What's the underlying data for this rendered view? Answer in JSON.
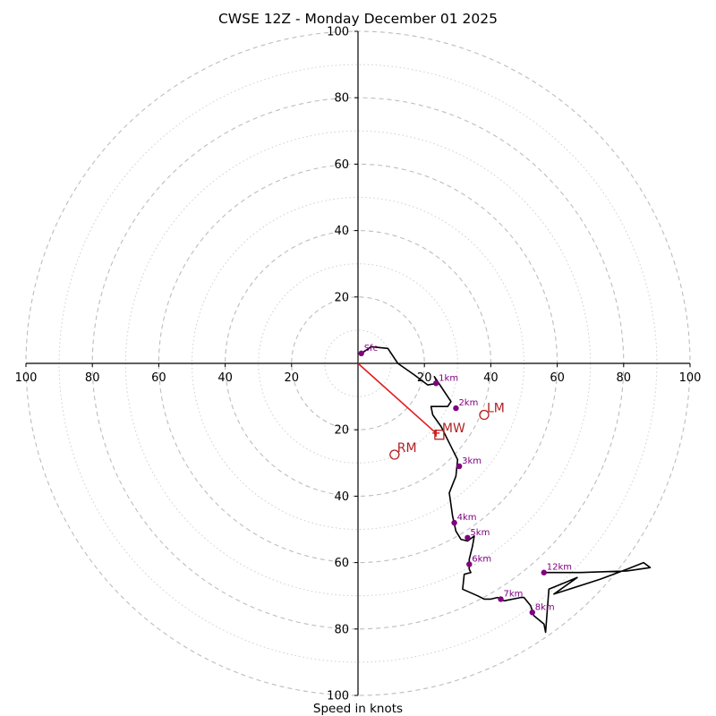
{
  "chart_data": {
    "type": "hodograph",
    "title": "CWSE 12Z - Monday December 01 2025",
    "xlabel": "Speed in knots",
    "axis_range": [
      -100,
      100
    ],
    "major_rings": [
      20,
      40,
      60,
      80,
      100
    ],
    "minor_rings": [
      10,
      30,
      50,
      70,
      90
    ],
    "x_tick_labels": [
      {
        "value": -100,
        "label": "100"
      },
      {
        "value": -80,
        "label": "80"
      },
      {
        "value": -60,
        "label": "60"
      },
      {
        "value": -40,
        "label": "40"
      },
      {
        "value": -20,
        "label": "20"
      },
      {
        "value": 20,
        "label": "20"
      },
      {
        "value": 40,
        "label": "40"
      },
      {
        "value": 60,
        "label": "60"
      },
      {
        "value": 80,
        "label": "80"
      },
      {
        "value": 100,
        "label": "100"
      }
    ],
    "y_tick_labels": [
      {
        "value": 100,
        "label": "100"
      },
      {
        "value": 80,
        "label": "80"
      },
      {
        "value": 60,
        "label": "60"
      },
      {
        "value": 40,
        "label": "40"
      },
      {
        "value": 20,
        "label": "20"
      },
      {
        "value": -20,
        "label": "20"
      },
      {
        "value": -40,
        "label": "40"
      },
      {
        "value": -60,
        "label": "60"
      },
      {
        "value": -80,
        "label": "80"
      },
      {
        "value": -100,
        "label": "100"
      }
    ],
    "hodograph_path": [
      [
        1,
        3
      ],
      [
        4,
        5
      ],
      [
        9,
        4.5
      ],
      [
        12,
        0
      ],
      [
        17,
        -3.5
      ],
      [
        21,
        -6.5
      ],
      [
        24,
        -6
      ],
      [
        23,
        -4
      ],
      [
        25,
        -7
      ],
      [
        28,
        -11.5
      ],
      [
        27,
        -13
      ],
      [
        22,
        -13
      ],
      [
        22.5,
        -15.5
      ],
      [
        25,
        -19
      ],
      [
        28,
        -25
      ],
      [
        30,
        -29
      ],
      [
        29.5,
        -34
      ],
      [
        27.5,
        -39
      ],
      [
        28.5,
        -46
      ],
      [
        29.5,
        -50.5
      ],
      [
        31,
        -53
      ],
      [
        33,
        -53.5
      ],
      [
        35,
        -52
      ],
      [
        34.5,
        -55
      ],
      [
        33.5,
        -59
      ],
      [
        33.5,
        -62
      ],
      [
        34,
        -63
      ],
      [
        32,
        -63.5
      ],
      [
        31.5,
        -68
      ],
      [
        36,
        -70
      ],
      [
        38,
        -71
      ],
      [
        40,
        -71
      ],
      [
        42,
        -70.5
      ],
      [
        44,
        -71.5
      ],
      [
        49,
        -70.5
      ],
      [
        50,
        -70.5
      ],
      [
        52,
        -73
      ],
      [
        53,
        -76
      ],
      [
        56,
        -78.5
      ],
      [
        56.5,
        -81
      ],
      [
        57.5,
        -68
      ],
      [
        66,
        -64.5
      ],
      [
        59,
        -69.5
      ],
      [
        73,
        -65
      ],
      [
        81,
        -62
      ],
      [
        86,
        -60
      ],
      [
        88,
        -61.5
      ],
      [
        81,
        -62.5
      ],
      [
        67,
        -63
      ],
      [
        56,
        -63
      ]
    ],
    "height_markers": [
      {
        "label": "Sfc",
        "u": 1,
        "v": 3
      },
      {
        "label": "1km",
        "u": 23.5,
        "v": -6
      },
      {
        "label": "2km",
        "u": 29.5,
        "v": -13.5
      },
      {
        "label": "3km",
        "u": 30.5,
        "v": -31
      },
      {
        "label": "4km",
        "u": 29,
        "v": -48
      },
      {
        "label": "5km",
        "u": 33,
        "v": -52.5
      },
      {
        "label": "6km",
        "u": 33.5,
        "v": -60.5
      },
      {
        "label": "7km",
        "u": 43,
        "v": -71
      },
      {
        "label": "8km",
        "u": 52.5,
        "v": -75
      },
      {
        "label": "12km",
        "u": 56,
        "v": -63
      }
    ],
    "storm_motions": [
      {
        "label": "RM",
        "u": 11,
        "v": -27.5
      },
      {
        "label": "LM",
        "u": 38,
        "v": -15.5
      },
      {
        "label": "MW",
        "u": 24.5,
        "v": -21.5
      }
    ],
    "shear_vector": {
      "from": [
        0,
        0
      ],
      "to": [
        23.5,
        -21
      ]
    }
  },
  "colors": {
    "hodograph_line": "#000000",
    "height_marker": "#800080",
    "storm_motion": "#b22222",
    "shear_vector": "#e41a1c",
    "major_ring": "#bdbdbd",
    "minor_ring": "#cfcfcf"
  }
}
